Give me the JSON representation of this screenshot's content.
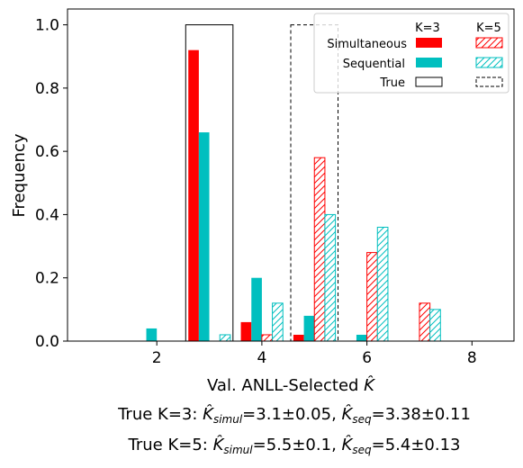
{
  "chart_data": {
    "type": "bar",
    "title": "",
    "xlabel": "Val. ANLL-Selected K̂",
    "ylabel": "Frequency",
    "xlim": [
      0.3,
      8.8
    ],
    "ylim": [
      0,
      1.05
    ],
    "xticks": [
      2,
      4,
      6,
      8
    ],
    "yticks": [
      0.0,
      0.2,
      0.4,
      0.6,
      0.8,
      1.0
    ],
    "xtick_labels": [
      "2",
      "4",
      "6",
      "8"
    ],
    "ytick_labels": [
      "0.0",
      "0.2",
      "0.4",
      "0.6",
      "0.8",
      "1.0"
    ],
    "categories": [
      1,
      2,
      3,
      4,
      5,
      6,
      7,
      8
    ],
    "bar_width": 0.2,
    "series": [
      {
        "name": "Simultaneous",
        "group": "K=3",
        "offset": -0.3,
        "fill": "#ff0000",
        "hatch": false,
        "values": [
          0,
          0,
          0.92,
          0.06,
          0.02,
          0,
          0,
          0
        ]
      },
      {
        "name": "Sequential",
        "group": "K=3",
        "offset": -0.1,
        "fill": "#00bfbf",
        "hatch": false,
        "values": [
          0,
          0.04,
          0.66,
          0.2,
          0.08,
          0.02,
          0,
          0
        ]
      },
      {
        "name": "Simultaneous",
        "group": "K=5",
        "offset": 0.1,
        "fill": "#ff0000",
        "hatch": true,
        "values": [
          0,
          0,
          0,
          0.02,
          0.58,
          0.28,
          0.12,
          0
        ]
      },
      {
        "name": "Sequential",
        "group": "K=5",
        "offset": 0.3,
        "fill": "#00bfbf",
        "hatch": true,
        "values": [
          0,
          0,
          0.02,
          0.12,
          0.4,
          0.36,
          0.1,
          0
        ]
      }
    ],
    "true_boxes": [
      {
        "group": "K=3",
        "x_center": 3,
        "width": 0.9,
        "value": 1.0,
        "style": "solid"
      },
      {
        "group": "K=5",
        "x_center": 5,
        "width": 0.9,
        "value": 1.0,
        "style": "dashed"
      }
    ],
    "legend": {
      "placement": "top-right",
      "columns": [
        "K=3",
        "K=5"
      ],
      "rows": [
        "Simultaneous",
        "Sequential",
        "True"
      ]
    },
    "captions": [
      {
        "prefix": "True K=3: ",
        "k_simul": "3.1±0.05",
        "k_seq": "3.38±0.11"
      },
      {
        "prefix": "True K=5: ",
        "k_simul": "5.5±0.1",
        "k_seq": "5.4±0.13"
      }
    ],
    "colors": {
      "simultaneous": "#ff0000",
      "sequential": "#00bfbf",
      "true": "#000000"
    }
  }
}
